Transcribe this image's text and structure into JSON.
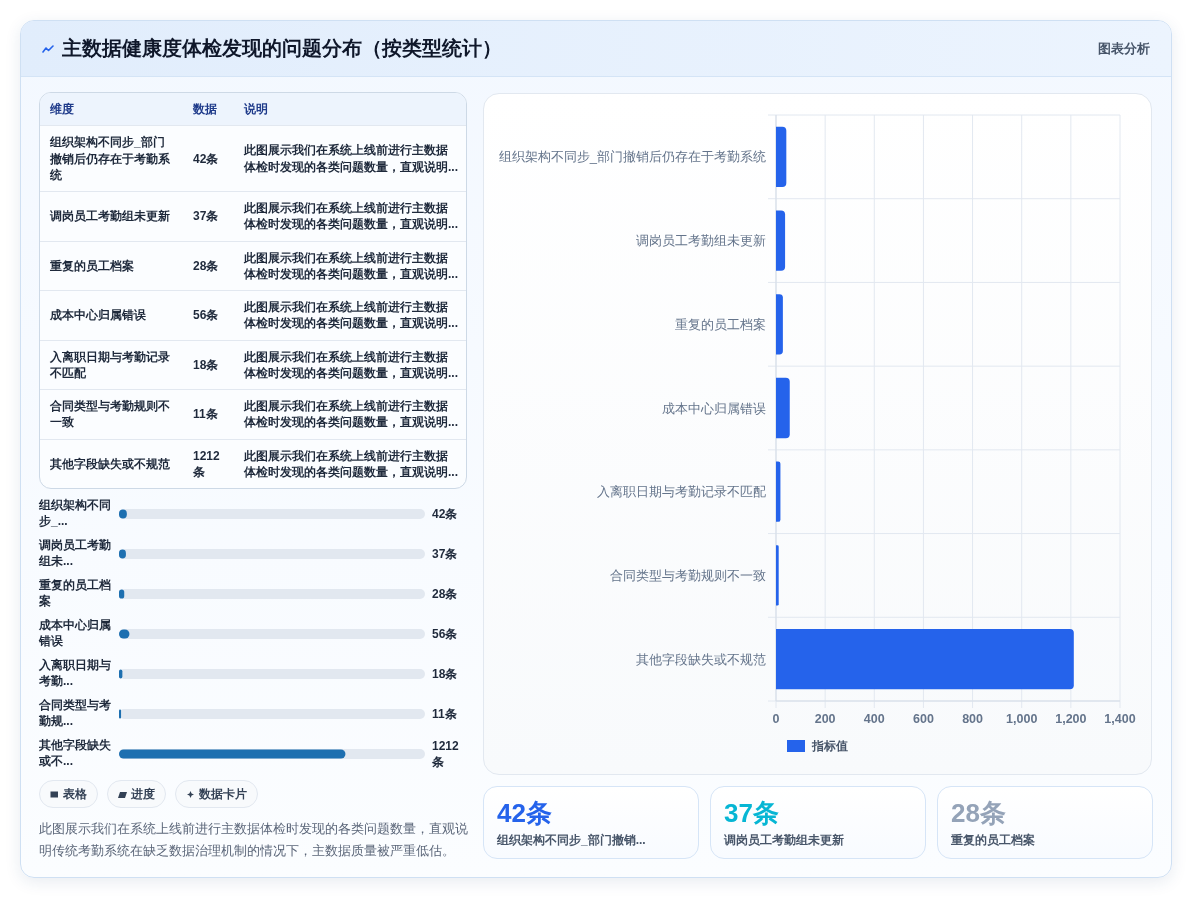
{
  "chart_data": [
    {
      "type": "other",
      "title": "主数据健康度体检发现的问题分布（按类型统计）",
      "annotations": [
        "图表分析"
      ]
    },
    {
      "type": "other",
      "annotations": [
        "维度",
        "数据",
        "说明",
        "组织架构不同步_部门撤销后仍存在于考勤系统",
        "42条",
        "此图展示我们在系统上线前进行主数据体检时发现的各类问题数量，直观说明...",
        "调岗员工考勤组未更新",
        "37条",
        "此图展示我们在系统上线前进行主数据体检时发现的各类问题数量，直观说明...",
        "重复的员工档案",
        "28条",
        "此图展示我们在系统上线前进行主数据体检时发现的各类问题数量，直观说明...",
        "成本中心归属错误",
        "56条",
        "此图展示我们在系统上线前进行主数据体检时发现的各类问题数量，直观说明...",
        "入离职日期与考勤记录不匹配",
        "18条",
        "此图展示我们在系统上线前进行主数据体检时发现的各类问题数量，直观说明...",
        "合同类型与考勤规则不一致",
        "11条",
        "此图展示我们在系统上线前进行主数据体检时发现的各类问题数量，直观说明...",
        "其他字段缺失或不规范",
        "1212条",
        "此图展示我们在系统上线前进行主数据体检时发现的各类问题数量，直观说明..."
      ]
    },
    {
      "type": "bar",
      "orientation": "horizontal",
      "categories": [
        "组织架构不同步_...",
        "调岗员工考勤组未...",
        "重复的员工档案",
        "成本中心归属错误",
        "入离职日期与考勤...",
        "合同类型与考勤规...",
        "其他字段缺失或不..."
      ],
      "values": [
        42,
        37,
        28,
        56,
        18,
        11,
        1212
      ],
      "value_labels": [
        "42条",
        "37条",
        "28条",
        "56条",
        "18条",
        "11条",
        "1212条"
      ],
      "color": "#1d6fb0",
      "annotations": [
        "表格",
        "进度",
        "数据卡片",
        "此图展示我们在系统上线前进行主数据体检时发现的各类问题数量，直观说明传统考勤系统在缺乏数据治理机制的情况下，主数据质量被严重低估。"
      ]
    },
    {
      "type": "bar",
      "orientation": "horizontal",
      "categories": [
        "组织架构不同步_部门撤销后仍存在于考勤系统",
        "调岗员工考勤组未更新",
        "重复的员工档案",
        "成本中心归属错误",
        "入离职日期与考勤记录不匹配",
        "合同类型与考勤规则不一致",
        "其他字段缺失或不规范"
      ],
      "series": [
        {
          "name": "指标值",
          "color": "#2563eb",
          "values": [
            42,
            37,
            28,
            56,
            18,
            11,
            1212
          ]
        }
      ],
      "xlim": [
        0,
        1400
      ],
      "xticks": [
        0,
        200,
        400,
        600,
        800,
        {
          "value": 1000,
          "label": "1,000"
        },
        {
          "value": 1200,
          "label": "1,200"
        },
        {
          "value": 1400,
          "label": "1,400"
        }
      ],
      "grid": true,
      "legend": "bottom"
    },
    {
      "type": "other",
      "annotations": [
        "42条",
        "组织架构不同步_部门撤销...",
        "37条",
        "调岗员工考勤组未更新",
        "28条",
        "重复的员工档案"
      ]
    }
  ]
}
